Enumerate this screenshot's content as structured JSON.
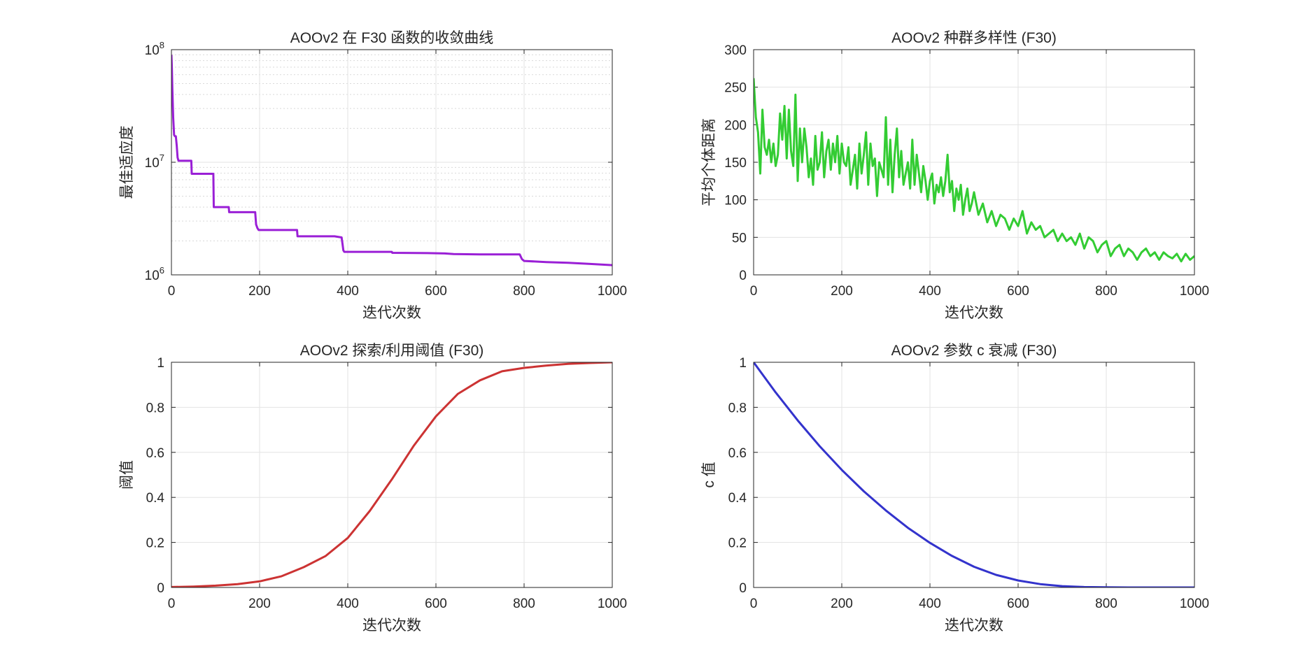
{
  "chart_data": [
    {
      "type": "line",
      "title": "AOOv2 在 F30 函数的收敛曲线",
      "xlabel": "迭代次数",
      "ylabel": "最佳适应度",
      "yscale": "log",
      "xlim": [
        0,
        1000
      ],
      "ylim": [
        1000000,
        100000000
      ],
      "xticks": [
        "0",
        "200",
        "400",
        "600",
        "800",
        "1000"
      ],
      "yticks": [
        {
          "base": "10",
          "exp": "6"
        },
        {
          "base": "10",
          "exp": "7"
        },
        {
          "base": "10",
          "exp": "8"
        }
      ],
      "grid": true,
      "minor_grid": true,
      "color": "#9a1fd6",
      "series": [
        {
          "x": [
            0,
            1,
            2,
            4,
            6,
            8,
            10,
            12,
            14,
            16,
            18,
            20,
            45,
            46,
            95,
            96,
            130,
            131,
            190,
            192,
            195,
            198,
            200,
            285,
            286,
            370,
            386,
            388,
            390,
            392,
            500,
            501,
            580,
            620,
            640,
            700,
            790,
            795,
            800,
            850,
            900,
            950,
            1000
          ],
          "y": [
            90000000,
            70000000,
            45000000,
            25000000,
            17500000,
            17000000,
            17000000,
            14000000,
            11000000,
            10300000,
            10300000,
            10300000,
            10300000,
            7900000,
            7900000,
            4000000,
            4000000,
            3600000,
            3600000,
            2800000,
            2600000,
            2500000,
            2500000,
            2500000,
            2200000,
            2200000,
            2150000,
            1900000,
            1650000,
            1600000,
            1600000,
            1570000,
            1560000,
            1550000,
            1530000,
            1520000,
            1520000,
            1380000,
            1330000,
            1300000,
            1280000,
            1250000,
            1220000
          ]
        }
      ]
    },
    {
      "type": "line",
      "title": "AOOv2 种群多样性 (F30)",
      "xlabel": "迭代次数",
      "ylabel": "平均个体距离",
      "xlim": [
        0,
        1000
      ],
      "ylim": [
        0,
        300
      ],
      "xticks": [
        "0",
        "200",
        "400",
        "600",
        "800",
        "1000"
      ],
      "yticks": [
        "0",
        "50",
        "100",
        "150",
        "200",
        "250",
        "300"
      ],
      "grid": true,
      "color": "#33cc33",
      "series": [
        {
          "x": [
            0,
            5,
            10,
            15,
            20,
            25,
            30,
            35,
            40,
            45,
            50,
            55,
            60,
            65,
            70,
            75,
            80,
            85,
            90,
            95,
            100,
            105,
            110,
            115,
            120,
            125,
            130,
            135,
            140,
            145,
            150,
            155,
            160,
            165,
            170,
            175,
            180,
            185,
            190,
            195,
            200,
            205,
            210,
            215,
            220,
            225,
            230,
            235,
            240,
            245,
            250,
            255,
            260,
            265,
            270,
            275,
            280,
            285,
            290,
            295,
            300,
            305,
            310,
            315,
            320,
            325,
            330,
            335,
            340,
            345,
            350,
            355,
            360,
            365,
            370,
            375,
            380,
            385,
            390,
            395,
            400,
            405,
            410,
            415,
            420,
            425,
            430,
            435,
            440,
            445,
            450,
            455,
            460,
            465,
            470,
            475,
            480,
            485,
            490,
            495,
            500,
            510,
            520,
            530,
            540,
            550,
            560,
            570,
            580,
            590,
            600,
            610,
            620,
            630,
            640,
            650,
            660,
            670,
            680,
            690,
            700,
            710,
            720,
            730,
            740,
            750,
            760,
            770,
            780,
            790,
            800,
            810,
            820,
            830,
            840,
            850,
            860,
            870,
            880,
            890,
            900,
            910,
            920,
            930,
            940,
            950,
            960,
            970,
            980,
            990,
            1000
          ],
          "y": [
            262,
            210,
            190,
            135,
            220,
            170,
            160,
            180,
            150,
            175,
            145,
            160,
            215,
            180,
            225,
            155,
            220,
            165,
            145,
            240,
            125,
            195,
            150,
            195,
            170,
            130,
            155,
            120,
            185,
            140,
            150,
            190,
            130,
            165,
            180,
            140,
            175,
            150,
            185,
            135,
            175,
            150,
            145,
            170,
            120,
            140,
            160,
            115,
            175,
            135,
            160,
            190,
            120,
            175,
            145,
            155,
            105,
            150,
            140,
            130,
            210,
            120,
            180,
            110,
            160,
            195,
            130,
            165,
            120,
            135,
            150,
            115,
            180,
            120,
            160,
            135,
            110,
            145,
            125,
            100,
            125,
            135,
            95,
            120,
            110,
            130,
            105,
            125,
            160,
            110,
            125,
            85,
            115,
            100,
            120,
            80,
            100,
            115,
            85,
            95,
            110,
            80,
            95,
            70,
            85,
            65,
            80,
            75,
            60,
            75,
            65,
            85,
            55,
            70,
            60,
            65,
            50,
            55,
            60,
            45,
            55,
            45,
            50,
            40,
            55,
            35,
            50,
            45,
            30,
            40,
            45,
            25,
            35,
            40,
            25,
            35,
            30,
            20,
            30,
            35,
            25,
            30,
            20,
            30,
            25,
            22,
            28,
            18,
            28,
            20,
            25
          ]
        }
      ]
    },
    {
      "type": "line",
      "title": "AOOv2 探索/利用阈值 (F30)",
      "xlabel": "迭代次数",
      "ylabel": "阈值",
      "xlim": [
        0,
        1000
      ],
      "ylim": [
        0,
        1
      ],
      "xticks": [
        "0",
        "200",
        "400",
        "600",
        "800",
        "1000"
      ],
      "yticks": [
        "0",
        "0.2",
        "0.4",
        "0.6",
        "0.8",
        "1"
      ],
      "grid": true,
      "color": "#cc3333",
      "series": [
        {
          "x": [
            0,
            50,
            100,
            150,
            200,
            250,
            300,
            350,
            400,
            450,
            500,
            550,
            600,
            650,
            700,
            750,
            800,
            850,
            900,
            950,
            1000
          ],
          "y": [
            0.002,
            0.004,
            0.008,
            0.015,
            0.027,
            0.05,
            0.09,
            0.14,
            0.22,
            0.34,
            0.48,
            0.63,
            0.76,
            0.86,
            0.92,
            0.96,
            0.975,
            0.985,
            0.993,
            0.997,
            1.0
          ]
        }
      ]
    },
    {
      "type": "line",
      "title": "AOOv2 参数 c 衰减 (F30)",
      "xlabel": "迭代次数",
      "ylabel": "c 值",
      "xlim": [
        0,
        1000
      ],
      "ylim": [
        0,
        1
      ],
      "xticks": [
        "0",
        "200",
        "400",
        "600",
        "800",
        "1000"
      ],
      "yticks": [
        "0",
        "0.2",
        "0.4",
        "0.6",
        "0.8",
        "1"
      ],
      "grid": true,
      "color": "#3333cc",
      "series": [
        {
          "x": [
            0,
            50,
            100,
            150,
            200,
            250,
            300,
            350,
            400,
            450,
            500,
            550,
            600,
            650,
            700,
            750,
            800,
            850,
            900,
            950,
            1000
          ],
          "y": [
            1.0,
            0.866,
            0.742,
            0.627,
            0.522,
            0.427,
            0.342,
            0.265,
            0.198,
            0.14,
            0.092,
            0.056,
            0.031,
            0.015,
            0.006,
            0.002,
            0.001,
            0.0,
            0.0,
            0.0,
            0.0
          ]
        }
      ]
    }
  ]
}
